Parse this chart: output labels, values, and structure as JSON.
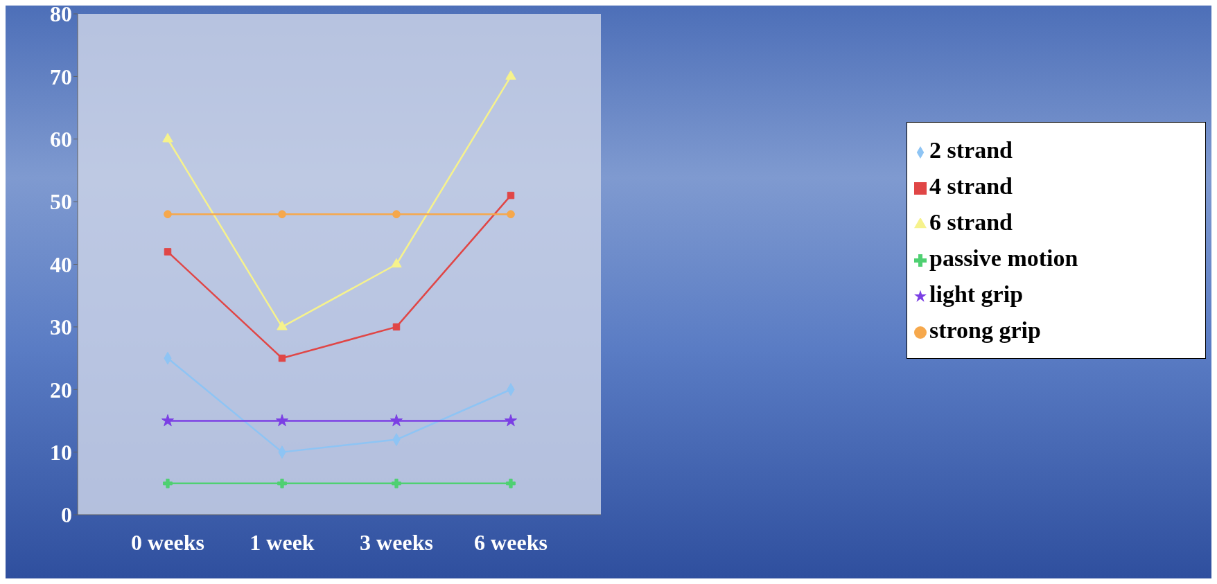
{
  "chart_data": {
    "type": "line",
    "categories": [
      "0 weeks",
      "1 week",
      "3 weeks",
      "6 weeks"
    ],
    "series": [
      {
        "name": "2 strand",
        "color": "#8ec4f4",
        "marker": "diamond",
        "values": [
          25,
          10,
          12,
          20
        ]
      },
      {
        "name": "4 strand",
        "color": "#e04646",
        "marker": "square",
        "values": [
          42,
          25,
          30,
          51
        ]
      },
      {
        "name": "6 strand",
        "color": "#f6f28c",
        "marker": "triangle",
        "values": [
          60,
          30,
          40,
          70
        ]
      },
      {
        "name": "passive motion",
        "color": "#4fd072",
        "marker": "cross",
        "values": [
          5,
          5,
          5,
          5
        ]
      },
      {
        "name": "light grip",
        "color": "#7b3fe4",
        "marker": "star",
        "values": [
          15,
          15,
          15,
          15
        ]
      },
      {
        "name": "strong grip",
        "color": "#f6a84c",
        "marker": "circle",
        "values": [
          48,
          48,
          48,
          48
        ]
      }
    ],
    "ylim": [
      0,
      80
    ],
    "yticks": [
      0,
      10,
      20,
      30,
      40,
      50,
      60,
      70,
      80
    ],
    "grid": false,
    "legend": "right",
    "line_style": "solid"
  }
}
